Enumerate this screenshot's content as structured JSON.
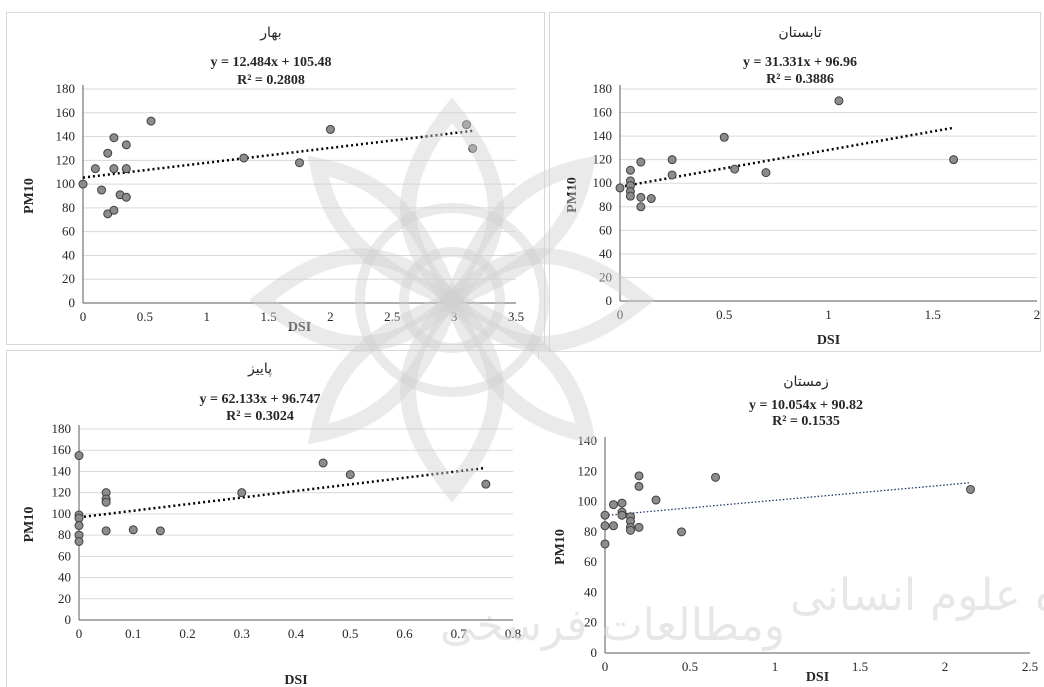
{
  "chart_data": [
    {
      "type": "scatter",
      "title": "بهار",
      "equation": "y = 12.484x + 105.48",
      "r_squared": "R² = 0.2808",
      "xlabel": "DSI",
      "ylabel": "PM10",
      "xlim": [
        0,
        3.5
      ],
      "ylim": [
        0,
        180
      ],
      "x_ticks": [
        "0",
        "0.5",
        "1",
        "1.5",
        "2",
        "2.5",
        "3",
        "3.5"
      ],
      "y_ticks": [
        "0",
        "20",
        "40",
        "60",
        "80",
        "100",
        "120",
        "140",
        "160",
        "180"
      ],
      "grid": true,
      "trendline": {
        "slope": 12.484,
        "intercept": 105.48,
        "x_range": [
          0,
          3.15
        ]
      },
      "points": [
        {
          "x": 0,
          "y": 100
        },
        {
          "x": 0.1,
          "y": 113
        },
        {
          "x": 0.15,
          "y": 95
        },
        {
          "x": 0.2,
          "y": 126
        },
        {
          "x": 0.2,
          "y": 75
        },
        {
          "x": 0.25,
          "y": 139
        },
        {
          "x": 0.25,
          "y": 113
        },
        {
          "x": 0.25,
          "y": 78
        },
        {
          "x": 0.3,
          "y": 91
        },
        {
          "x": 0.35,
          "y": 133
        },
        {
          "x": 0.35,
          "y": 113
        },
        {
          "x": 0.35,
          "y": 89
        },
        {
          "x": 0.55,
          "y": 153
        },
        {
          "x": 1.3,
          "y": 122
        },
        {
          "x": 1.75,
          "y": 118
        },
        {
          "x": 2.0,
          "y": 146
        },
        {
          "x": 3.1,
          "y": 150
        },
        {
          "x": 3.15,
          "y": 130
        }
      ]
    },
    {
      "type": "scatter",
      "title": "تابستان",
      "equation": "y = 31.331x + 96.96",
      "r_squared": "R² = 0.3886",
      "xlabel": "DSI",
      "ylabel": "PM10",
      "xlim": [
        0,
        2
      ],
      "ylim": [
        0,
        180
      ],
      "x_ticks": [
        "0",
        "0.5",
        "1",
        "1.5",
        "2"
      ],
      "y_ticks": [
        "0",
        "20",
        "40",
        "60",
        "80",
        "100",
        "120",
        "140",
        "160",
        "180"
      ],
      "grid": true,
      "trendline": {
        "slope": 31.331,
        "intercept": 96.96,
        "x_range": [
          0,
          1.6
        ]
      },
      "points": [
        {
          "x": 0,
          "y": 96
        },
        {
          "x": 0.05,
          "y": 111
        },
        {
          "x": 0.05,
          "y": 102
        },
        {
          "x": 0.05,
          "y": 98
        },
        {
          "x": 0.05,
          "y": 93
        },
        {
          "x": 0.05,
          "y": 89
        },
        {
          "x": 0.1,
          "y": 118
        },
        {
          "x": 0.1,
          "y": 88
        },
        {
          "x": 0.1,
          "y": 80
        },
        {
          "x": 0.15,
          "y": 87
        },
        {
          "x": 0.25,
          "y": 120
        },
        {
          "x": 0.25,
          "y": 107
        },
        {
          "x": 0.5,
          "y": 139
        },
        {
          "x": 0.55,
          "y": 112
        },
        {
          "x": 0.7,
          "y": 109
        },
        {
          "x": 1.05,
          "y": 170
        },
        {
          "x": 1.6,
          "y": 120
        }
      ]
    },
    {
      "type": "scatter",
      "title": "پاییز",
      "equation": "y = 62.133x + 96.747",
      "r_squared": "R² = 0.3024",
      "xlabel": "DSI",
      "ylabel": "PM10",
      "xlim": [
        0,
        0.8
      ],
      "ylim": [
        0,
        180
      ],
      "x_ticks": [
        "0",
        "0.1",
        "0.2",
        "0.3",
        "0.4",
        "0.5",
        "0.6",
        "0.7",
        "0.8"
      ],
      "y_ticks": [
        "0",
        "20",
        "40",
        "60",
        "80",
        "100",
        "120",
        "140",
        "160",
        "180"
      ],
      "grid": true,
      "trendline": {
        "slope": 62.133,
        "intercept": 96.747,
        "x_range": [
          0,
          0.75
        ]
      },
      "points": [
        {
          "x": 0,
          "y": 155
        },
        {
          "x": 0,
          "y": 99
        },
        {
          "x": 0,
          "y": 96
        },
        {
          "x": 0,
          "y": 89
        },
        {
          "x": 0,
          "y": 80
        },
        {
          "x": 0,
          "y": 74
        },
        {
          "x": 0.05,
          "y": 120
        },
        {
          "x": 0.05,
          "y": 114
        },
        {
          "x": 0.05,
          "y": 111
        },
        {
          "x": 0.05,
          "y": 84
        },
        {
          "x": 0.1,
          "y": 85
        },
        {
          "x": 0.15,
          "y": 84
        },
        {
          "x": 0.3,
          "y": 120
        },
        {
          "x": 0.45,
          "y": 148
        },
        {
          "x": 0.5,
          "y": 137
        },
        {
          "x": 0.75,
          "y": 128
        }
      ]
    },
    {
      "type": "scatter",
      "title": "زمستان",
      "equation": "y = 10.054x + 90.82",
      "r_squared": "R² = 0.1535",
      "xlabel": "DSI",
      "ylabel": "PM10",
      "xlim": [
        0,
        2.5
      ],
      "ylim": [
        0,
        140
      ],
      "x_ticks": [
        "0",
        "0.5",
        "1",
        "1.5",
        "2",
        "2.5"
      ],
      "y_ticks": [
        "0",
        "20",
        "40",
        "60",
        "80",
        "100",
        "120",
        "140"
      ],
      "grid": false,
      "trendline": {
        "slope": 10.054,
        "intercept": 90.82,
        "x_range": [
          0,
          2.15
        ]
      },
      "points": [
        {
          "x": 0,
          "y": 91
        },
        {
          "x": 0,
          "y": 84
        },
        {
          "x": 0,
          "y": 72
        },
        {
          "x": 0.05,
          "y": 98
        },
        {
          "x": 0.05,
          "y": 84
        },
        {
          "x": 0.1,
          "y": 99
        },
        {
          "x": 0.1,
          "y": 93
        },
        {
          "x": 0.1,
          "y": 91
        },
        {
          "x": 0.15,
          "y": 90
        },
        {
          "x": 0.15,
          "y": 87
        },
        {
          "x": 0.15,
          "y": 83
        },
        {
          "x": 0.15,
          "y": 81
        },
        {
          "x": 0.2,
          "y": 117
        },
        {
          "x": 0.2,
          "y": 110
        },
        {
          "x": 0.2,
          "y": 83
        },
        {
          "x": 0.3,
          "y": 101
        },
        {
          "x": 0.45,
          "y": 80
        },
        {
          "x": 0.65,
          "y": 116
        },
        {
          "x": 2.15,
          "y": 108
        }
      ]
    }
  ],
  "watermark": {
    "text_left": "ومطالعات فرسخی",
    "text_right": "ترو بشسكاه علوم انسانی",
    "color": "#d0d0d0"
  }
}
